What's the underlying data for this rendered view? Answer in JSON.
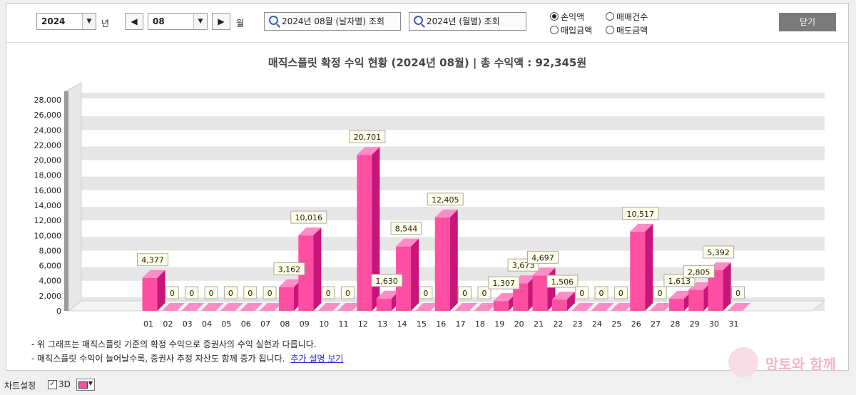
{
  "controls": {
    "year": "2024",
    "year_unit": "년",
    "month": "08",
    "month_unit": "월",
    "prev_icon": "◀",
    "next_icon": "▶",
    "btn_daily": "2024년 08월 (날자별) 조회",
    "btn_monthly": "2024년 (월별) 조회",
    "radio": [
      {
        "label": "손익액",
        "checked": true
      },
      {
        "label": "매매건수",
        "checked": false
      },
      {
        "label": "매입금액",
        "checked": false
      },
      {
        "label": "매도금액",
        "checked": false
      }
    ],
    "close_label": "닫기"
  },
  "chart_title": "매직스플릿 확정 수익 현황 (2024년 08월)  |  총 수익액 : 92,345원",
  "notes": {
    "line1": "- 위 그래프는 매직스플릿 기준의 확정 수익으로 증권사의 수익 실현과 다릅니다.",
    "line2": "- 매직스플릿 수익이 늘어날수록, 증권사 추정 자산도 함께 증가 됩니다.",
    "link": "추가 설명 보기"
  },
  "watermark": "망토와 함께",
  "status": {
    "chart_settings": "차트설정",
    "three_d_label": "3D",
    "three_d_checked": "✓"
  },
  "colors": {
    "bar": "#ff4fa3",
    "bar_side": "#c8157a",
    "bar_top": "#ff8cc6",
    "band": "#e6e6e6"
  },
  "chart_data": {
    "type": "bar",
    "categories": [
      "01",
      "02",
      "03",
      "04",
      "05",
      "06",
      "07",
      "08",
      "09",
      "10",
      "11",
      "12",
      "13",
      "14",
      "15",
      "16",
      "17",
      "18",
      "19",
      "20",
      "21",
      "22",
      "23",
      "24",
      "25",
      "26",
      "27",
      "28",
      "29",
      "30",
      "31"
    ],
    "values": [
      4377,
      0,
      0,
      0,
      0,
      0,
      0,
      3162,
      10016,
      0,
      0,
      20701,
      1630,
      8544,
      0,
      12405,
      0,
      0,
      1307,
      3673,
      4697,
      1506,
      0,
      0,
      0,
      10517,
      0,
      1613,
      2805,
      5392,
      0
    ],
    "labels": [
      "4,377",
      "0",
      "0",
      "0",
      "0",
      "0",
      "0",
      "3,162",
      "10,016",
      "0",
      "0",
      "20,701",
      "1,630",
      "8,544",
      "0",
      "12,405",
      "0",
      "0",
      "1,307",
      "3,673",
      "4,697",
      "1,506",
      "0",
      "0",
      "0",
      "10,517",
      "0",
      "1,613",
      "2,805",
      "5,392",
      "0"
    ],
    "yticks": [
      "0",
      "2,000",
      "4,000",
      "6,000",
      "8,000",
      "10,000",
      "12,000",
      "14,000",
      "16,000",
      "18,000",
      "20,000",
      "22,000",
      "24,000",
      "26,000",
      "28,000"
    ],
    "ylim": [
      0,
      28000
    ],
    "grid": "alternating horizontal bands",
    "legend": "none"
  }
}
